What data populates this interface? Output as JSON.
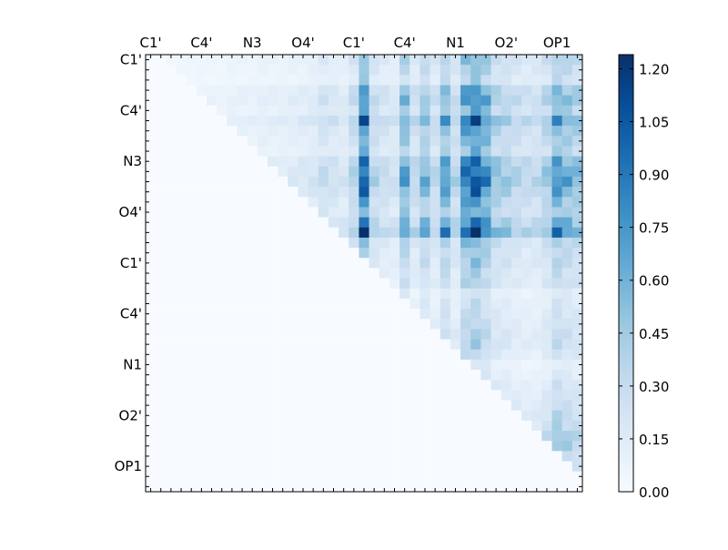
{
  "chart_data": {
    "type": "heatmap",
    "title": "",
    "xlabel": "",
    "ylabel": "",
    "colormap": "Blues",
    "vmin": 0.0,
    "vmax": 1.24,
    "grid_size": 43,
    "axis_labels": [
      "C1'",
      "C4'",
      "N3",
      "O4'",
      "C1'",
      "C4'",
      "N1",
      "O2'",
      "OP1"
    ],
    "axis_label_indices": [
      0,
      5,
      10,
      15,
      20,
      25,
      30,
      35,
      40
    ],
    "colorbar_ticks": [
      "0.00",
      "0.15",
      "0.30",
      "0.45",
      "0.60",
      "0.75",
      "0.90",
      "1.05",
      "1.20"
    ],
    "colorbar_tick_values": [
      0.0,
      0.15,
      0.3,
      0.45,
      0.6,
      0.75,
      0.9,
      1.05,
      1.2
    ],
    "row_profile": [
      0.35,
      0.3,
      0.25,
      0.45,
      0.5,
      0.4,
      0.6,
      0.45,
      0.4,
      0.35,
      0.55,
      0.6,
      0.65,
      0.55,
      0.45,
      0.4,
      0.55,
      0.7,
      0.35,
      0.3,
      0.3,
      0.25,
      0.25,
      0.15,
      0.18,
      0.2,
      0.22,
      0.25,
      0.25,
      0.2,
      0.12,
      0.15,
      0.2,
      0.22,
      0.25,
      0.3,
      0.32,
      0.4,
      0.4,
      0.3,
      0.25,
      0.15,
      0.1
    ],
    "col_profile": [
      0.05,
      0.08,
      0.1,
      0.1,
      0.12,
      0.12,
      0.12,
      0.12,
      0.15,
      0.15,
      0.15,
      0.18,
      0.18,
      0.18,
      0.2,
      0.22,
      0.25,
      0.35,
      0.3,
      0.25,
      0.45,
      1.2,
      0.45,
      0.35,
      0.3,
      0.8,
      0.4,
      0.7,
      0.4,
      0.85,
      0.45,
      1.05,
      1.25,
      0.95,
      0.6,
      0.55,
      0.45,
      0.4,
      0.4,
      0.55,
      0.9,
      0.75,
      0.65
    ],
    "row_col_profile_note": ""
  }
}
